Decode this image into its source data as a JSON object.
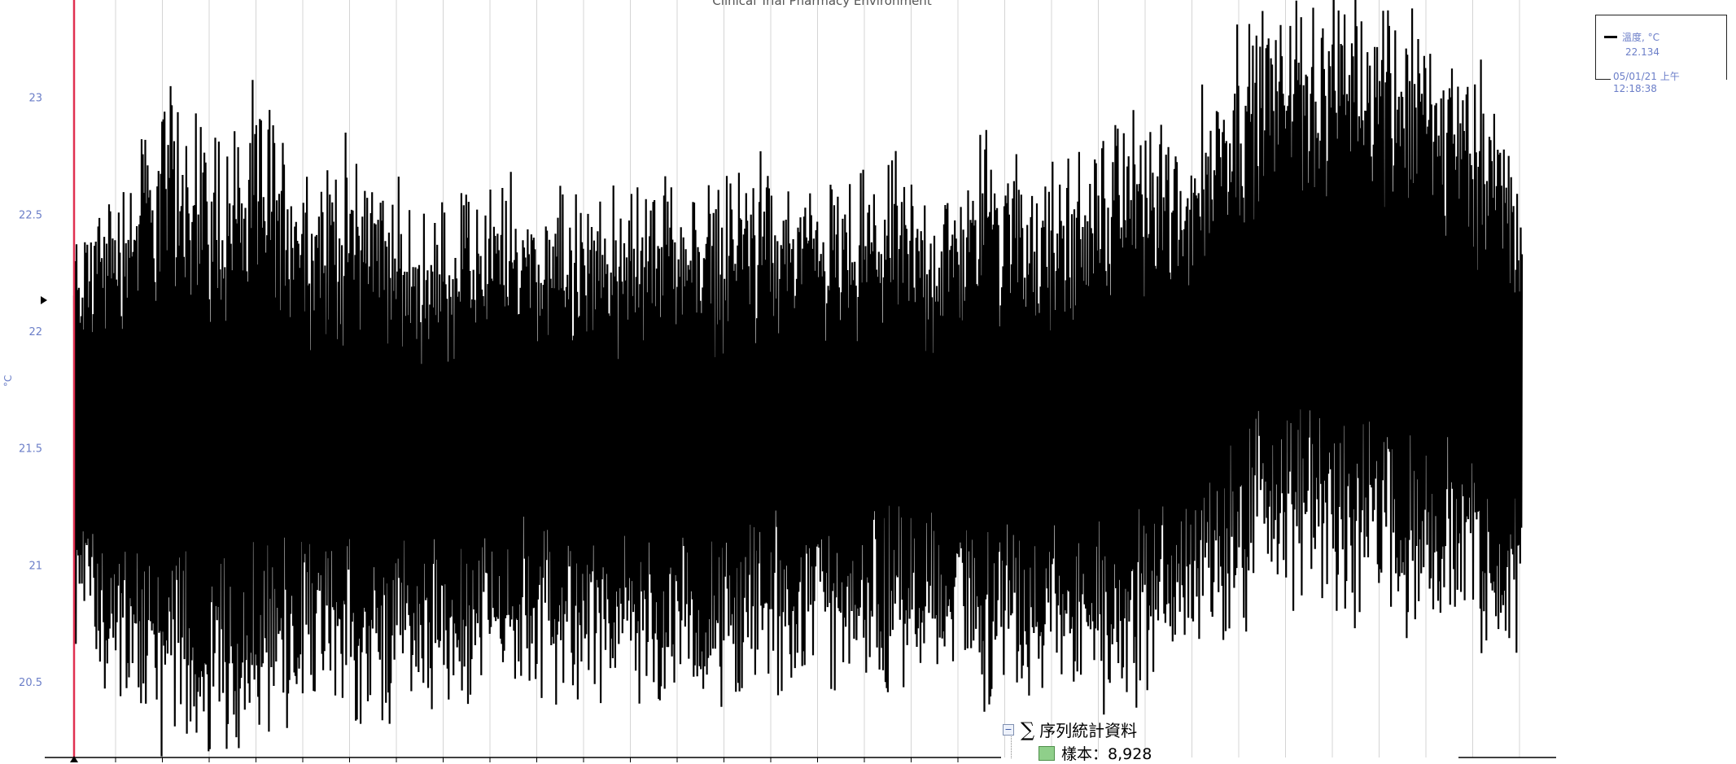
{
  "chart_data": {
    "type": "line",
    "title": "Clinical Trial Pharmacy Environment",
    "ylabel": "°C",
    "ylim": [
      20.18,
      23.42
    ],
    "y_ticks": [
      "23",
      "22.5",
      "22",
      "21.5",
      "21",
      "20.5"
    ],
    "y_tick_values": [
      23,
      22.5,
      22,
      21.5,
      21,
      20.5
    ],
    "grid": "vertical",
    "legend_placement": "top-right",
    "series": [
      {
        "name": "溫度, °C",
        "color": "#000000",
        "n_points": 8928,
        "envelope_upper": [
          22.35,
          22.6,
          22.9,
          22.75,
          22.85,
          22.55,
          22.7,
          22.4,
          22.45,
          22.55,
          22.5,
          22.45,
          22.55,
          22.5,
          22.6,
          22.55,
          22.5,
          22.6,
          22.45,
          22.75,
          22.55,
          22.65,
          22.9,
          22.7,
          23.15,
          23.3,
          23.25,
          23.35,
          23.15,
          23.05,
          22.6
        ],
        "envelope_lower": [
          20.75,
          20.55,
          20.4,
          20.3,
          20.3,
          20.55,
          20.45,
          20.55,
          20.5,
          20.55,
          20.55,
          20.6,
          20.55,
          20.55,
          20.6,
          20.55,
          20.6,
          20.6,
          20.65,
          20.55,
          20.6,
          20.55,
          20.55,
          20.8,
          20.85,
          21.05,
          20.9,
          20.95,
          20.85,
          20.75,
          20.8
        ]
      }
    ]
  },
  "legend": {
    "series_label": "溫度, °C",
    "current_value": "22.134",
    "cursor_time": "05/01/21 上午 12:18:38"
  },
  "stats_panel": {
    "title": "序列統計資料",
    "sample_label": "樣本：8,928",
    "collapse_symbol": "−",
    "sigma_symbol": "∑"
  },
  "colors": {
    "series": "#000000",
    "cursor": "#e03050",
    "tick_text": "#6b7ec8",
    "grid": "#d4d4d4"
  }
}
